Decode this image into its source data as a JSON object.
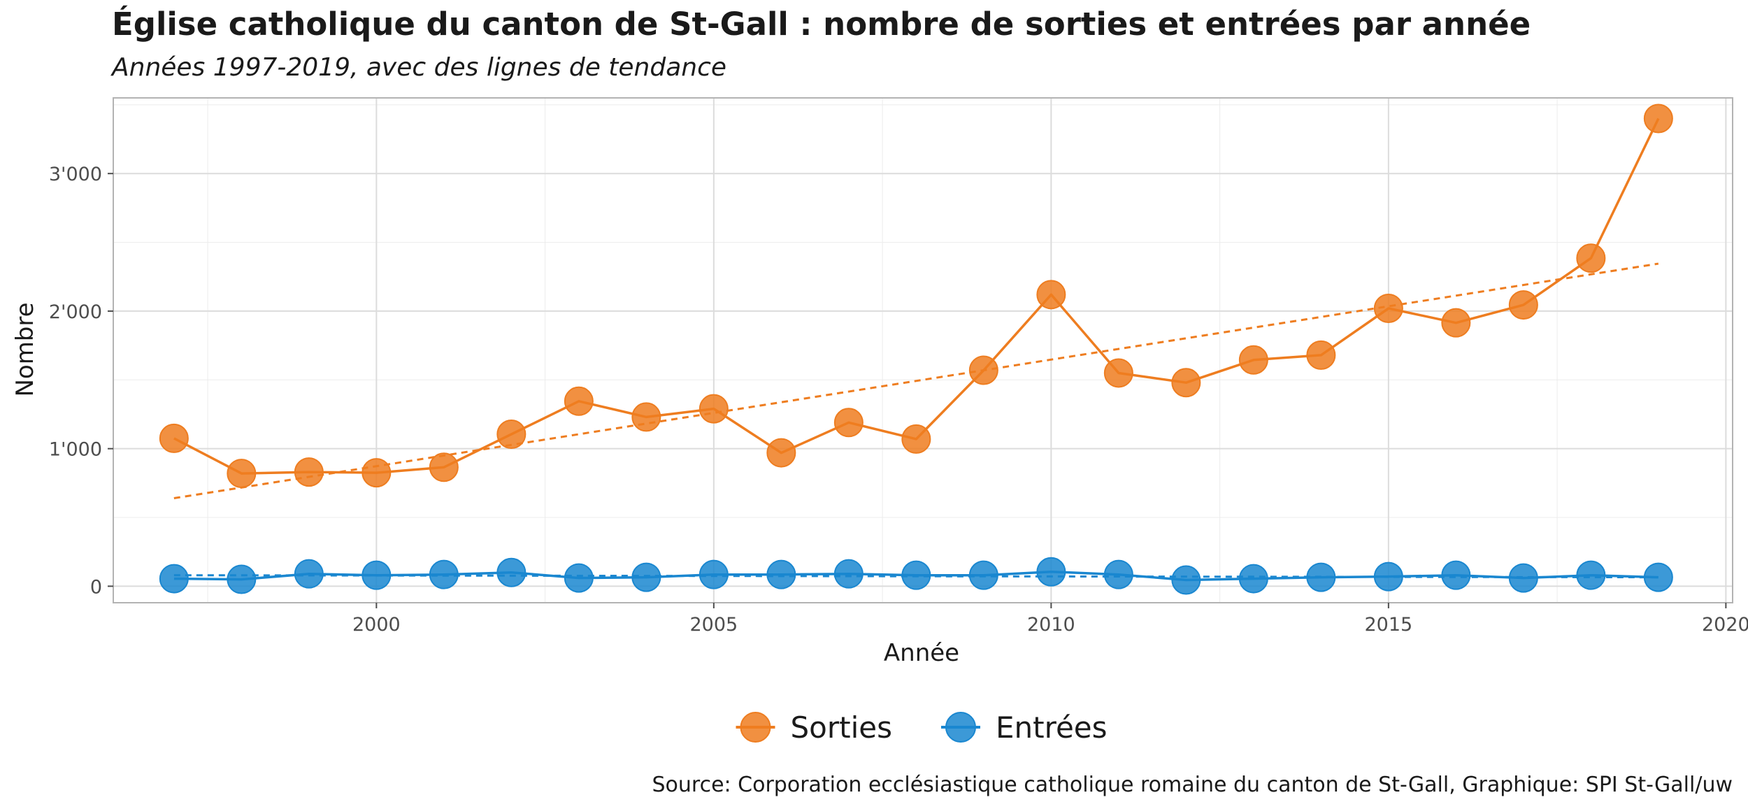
{
  "title": "Église catholique du canton de St-Gall : nombre de sorties et entrées par année",
  "subtitle": "Années 1997-2019, avec des lignes de tendance",
  "caption": "Source: Corporation ecclésiastique catholique romaine du canton de St-Gall, Graphique: SPI St-Gall/uw",
  "chart_data": {
    "type": "line",
    "xlabel": "Année",
    "ylabel": "Nombre",
    "x": [
      1997,
      1998,
      1999,
      2000,
      2001,
      2002,
      2003,
      2004,
      2005,
      2006,
      2007,
      2008,
      2009,
      2010,
      2011,
      2012,
      2013,
      2014,
      2015,
      2016,
      2017,
      2018,
      2019
    ],
    "series": [
      {
        "name": "Sorties",
        "color": "#ee7d20",
        "values": [
          1075,
          820,
          830,
          825,
          865,
          1105,
          1345,
          1230,
          1290,
          970,
          1190,
          1070,
          1570,
          2120,
          1550,
          1480,
          1645,
          1680,
          2020,
          1915,
          2045,
          2385,
          3400
        ],
        "trend": [
          640,
          2345
        ]
      },
      {
        "name": "Entrées",
        "color": "#1a87d0",
        "values": [
          55,
          50,
          90,
          80,
          85,
          100,
          60,
          65,
          85,
          85,
          90,
          80,
          80,
          105,
          85,
          45,
          55,
          65,
          70,
          80,
          60,
          80,
          65
        ],
        "trend": [
          80,
          65
        ]
      }
    ],
    "xlim": [
      1996.1,
      2020.1
    ],
    "ylim": [
      -120,
      3550
    ],
    "x_ticks": [
      2000,
      2005,
      2010,
      2015,
      2020
    ],
    "x_tick_labels": [
      "2000",
      "2005",
      "2010",
      "2015",
      "2020"
    ],
    "y_ticks": [
      0,
      1000,
      2000,
      3000
    ],
    "y_tick_labels": [
      "0",
      "1'000",
      "2'000",
      "3'000"
    ],
    "grid": true,
    "legend_position": "bottom"
  }
}
